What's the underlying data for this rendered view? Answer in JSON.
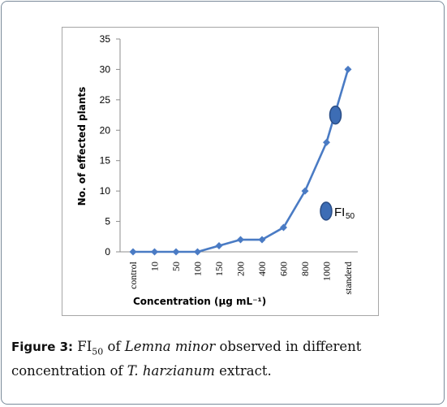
{
  "caption": {
    "label": "Figure 3:",
    "fi_symbol": "FI",
    "fi_subscript": "50",
    "text_1": " of ",
    "species": "Lemna minor",
    "text_2": " observed in different concentration of ",
    "organism": "T. harzianum",
    "text_3": " extract."
  },
  "colors": {
    "series": "#4a7bc4",
    "marker_fill": "#3d6db5",
    "marker_stroke": "#2a4d85",
    "axis": "#8c8c8c",
    "caption_frame": "#7a8a9a"
  },
  "chart_data": {
    "type": "line",
    "xlabel": "Concentration (µg mL⁻¹)",
    "ylabel": "No. of effected plants",
    "categories": [
      "control",
      "10",
      "50",
      "100",
      "150",
      "200",
      "400",
      "600",
      "800",
      "1000",
      "standerd"
    ],
    "series": [
      {
        "values": [
          0,
          0,
          0,
          0,
          1,
          2,
          2,
          4,
          10,
          18,
          30
        ]
      }
    ],
    "ylim": [
      0,
      35
    ],
    "yticks": [
      0,
      5,
      10,
      15,
      20,
      25,
      30,
      35
    ],
    "grid": false,
    "marker": "diamond",
    "annotations": [
      {
        "type": "ellipse-marker",
        "near_category": "1000",
        "y": 22.5
      },
      {
        "type": "ellipse-legend",
        "label": "FI",
        "label_subscript": "50",
        "y": 6.7
      }
    ]
  }
}
